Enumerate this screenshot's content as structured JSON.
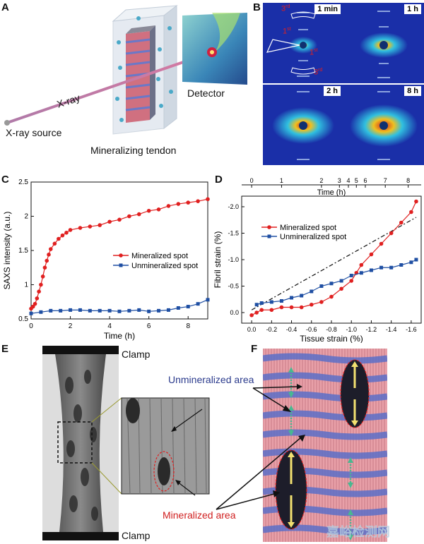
{
  "panels": {
    "A": "A",
    "B": "B",
    "C": "C",
    "D": "D",
    "E": "E",
    "F": "F"
  },
  "panel_a": {
    "xray": "X-ray",
    "source": "X-ray source",
    "detector": "Detector",
    "tendon": "Mineralizing tendon"
  },
  "panel_b": {
    "times": [
      "1 min",
      "1 h",
      "2 h",
      "8 h"
    ],
    "orders": {
      "third": "3",
      "first": "1",
      "suffix_rd": "rd",
      "suffix_st": "st"
    }
  },
  "panel_e": {
    "clamp_top": "Clamp",
    "clamp_bottom": "Clamp"
  },
  "panel_f": {
    "unmineralized": "Unmineralized area",
    "mineralized": "Mineralized area"
  },
  "watermark": "嘉峪检测网",
  "chart_data": [
    {
      "id": "C",
      "type": "scatter",
      "xlabel": "Time (h)",
      "ylabel": "SAXS intensity (a.u.)",
      "xlim": [
        0,
        9
      ],
      "ylim": [
        0.5,
        2.5
      ],
      "xticks": [
        0,
        2,
        4,
        6,
        8
      ],
      "yticks": [
        0.5,
        1,
        1.5,
        2,
        2.5
      ],
      "ytick_labels": [
        "0.5",
        "1",
        "1.5",
        "2",
        "2.5"
      ],
      "legend": "center-right",
      "series": [
        {
          "name": "Mineralized spot",
          "color": "#e02020",
          "marker": "circle",
          "x": [
            0,
            0.1,
            0.2,
            0.3,
            0.4,
            0.5,
            0.6,
            0.7,
            0.8,
            0.9,
            1.0,
            1.2,
            1.4,
            1.6,
            1.8,
            2.0,
            2.5,
            3,
            3.5,
            4,
            4.5,
            5,
            5.5,
            6,
            6.5,
            7,
            7.5,
            8,
            8.5,
            9
          ],
          "y": [
            0.65,
            0.68,
            0.72,
            0.8,
            0.9,
            1.0,
            1.12,
            1.25,
            1.35,
            1.44,
            1.52,
            1.6,
            1.67,
            1.72,
            1.76,
            1.8,
            1.83,
            1.85,
            1.87,
            1.92,
            1.95,
            2.0,
            2.03,
            2.08,
            2.1,
            2.15,
            2.18,
            2.2,
            2.22,
            2.25
          ]
        },
        {
          "name": "Unmineralized spot",
          "color": "#1f4fa3",
          "marker": "square",
          "x": [
            0,
            0.5,
            1,
            1.5,
            2,
            2.5,
            3,
            3.5,
            4,
            4.5,
            5,
            5.5,
            6,
            6.5,
            7,
            7.5,
            8,
            8.5,
            9
          ],
          "y": [
            0.58,
            0.6,
            0.62,
            0.62,
            0.63,
            0.63,
            0.62,
            0.62,
            0.62,
            0.61,
            0.62,
            0.63,
            0.61,
            0.62,
            0.63,
            0.66,
            0.68,
            0.72,
            0.78
          ]
        }
      ]
    },
    {
      "id": "D",
      "type": "scatter",
      "xlabel": "Tissue strain (%)",
      "ylabel": "Fibril strain (%)",
      "top_xlabel": "Time (h)",
      "xlim": [
        0.1,
        -1.7
      ],
      "ylim": [
        0.2,
        -2.2
      ],
      "xticks": [
        0.0,
        -0.2,
        -0.4,
        -0.6,
        -0.8,
        -1.0,
        -1.2,
        -1.4,
        -1.6
      ],
      "xtick_labels": [
        "0.0",
        "-0.2",
        "-0.4",
        "-0.6",
        "-0.8",
        "-1.0",
        "-1.2",
        "-1.4",
        "-1.6"
      ],
      "yticks": [
        0.0,
        -0.5,
        -1.0,
        -1.5,
        -2.0
      ],
      "ytick_labels": [
        "0.0",
        "-0.5",
        "-1.0",
        "-1.5",
        "-2.0"
      ],
      "top_ticks": {
        "labels": [
          "0",
          "1",
          "2",
          "3",
          "4",
          "5",
          "6",
          "7",
          "8"
        ],
        "positions": [
          0.0,
          -0.3,
          -0.7,
          -0.88,
          -0.97,
          -1.05,
          -1.14,
          -1.34,
          -1.57
        ]
      },
      "legend": "top-center",
      "series": [
        {
          "name": "Mineralized spot",
          "color": "#e02020",
          "marker": "circle",
          "x": [
            -0.05,
            0.0,
            -0.1,
            -0.2,
            -0.3,
            -0.4,
            -0.5,
            -0.6,
            -0.7,
            -0.8,
            -0.9,
            -1.0,
            -1.05,
            -1.1,
            -1.2,
            -1.3,
            -1.4,
            -1.5,
            -1.6,
            -1.65
          ],
          "y": [
            0.0,
            0.05,
            -0.05,
            -0.05,
            -0.1,
            -0.1,
            -0.1,
            -0.15,
            -0.2,
            -0.3,
            -0.45,
            -0.6,
            -0.75,
            -0.9,
            -1.1,
            -1.3,
            -1.5,
            -1.7,
            -1.9,
            -2.1
          ]
        },
        {
          "name": "Unmineralized spot",
          "color": "#1f4fa3",
          "marker": "square",
          "x": [
            -0.05,
            -0.1,
            -0.2,
            -0.3,
            -0.4,
            -0.5,
            -0.6,
            -0.7,
            -0.8,
            -0.9,
            -1.0,
            -1.1,
            -1.2,
            -1.3,
            -1.4,
            -1.5,
            -1.6,
            -1.65
          ],
          "y": [
            -0.15,
            -0.18,
            -0.2,
            -0.22,
            -0.28,
            -0.32,
            -0.4,
            -0.5,
            -0.55,
            -0.6,
            -0.7,
            -0.75,
            -0.8,
            -0.85,
            -0.85,
            -0.9,
            -0.95,
            -1.0
          ]
        }
      ],
      "fit_line": {
        "x": [
          0.0,
          -1.65
        ],
        "y": [
          -0.05,
          -1.8
        ]
      }
    }
  ]
}
